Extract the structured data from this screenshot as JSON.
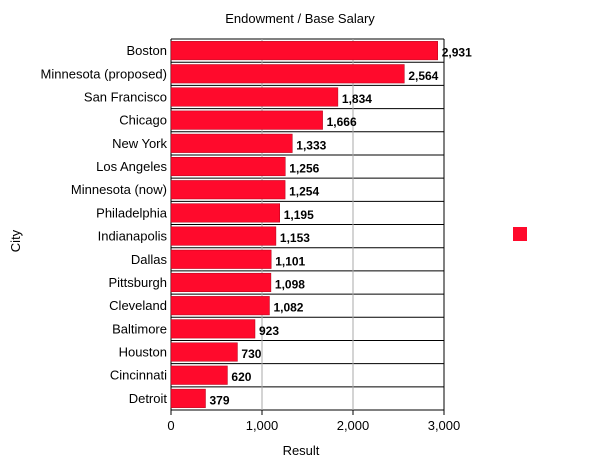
{
  "chart_data": {
    "type": "bar",
    "orientation": "horizontal",
    "title": "Endowment / Base Salary",
    "xlabel": "Result",
    "ylabel": "City",
    "xlim": [
      0,
      3000
    ],
    "xticks": [
      0,
      1000,
      2000,
      3000
    ],
    "xtick_labels": [
      "0",
      "1,000",
      "2,000",
      "3,000"
    ],
    "grid": true,
    "legend": "right",
    "colors": {
      "bar": "#ff0a2c",
      "bar_edge": "#b00018",
      "grid": "#aaaaaa",
      "axis": "#000000"
    },
    "categories": [
      "Boston",
      "Minnesota (proposed)",
      "San Francisco",
      "Chicago",
      "New York",
      "Los Angeles",
      "Minnesota (now)",
      "Philadelphia",
      "Indianapolis",
      "Dallas",
      "Pittsburgh",
      "Cleveland",
      "Baltimore",
      "Houston",
      "Cincinnati",
      "Detroit"
    ],
    "values": [
      2931,
      2564,
      1834,
      1666,
      1333,
      1256,
      1254,
      1195,
      1153,
      1101,
      1098,
      1082,
      923,
      730,
      620,
      379
    ],
    "value_labels": [
      "2,931",
      "2,564",
      "1,834",
      "1,666",
      "1,333",
      "1,256",
      "1,254",
      "1,195",
      "1,153",
      "1,101",
      "1,098",
      "1,082",
      "923",
      "730",
      "620",
      "379"
    ]
  }
}
